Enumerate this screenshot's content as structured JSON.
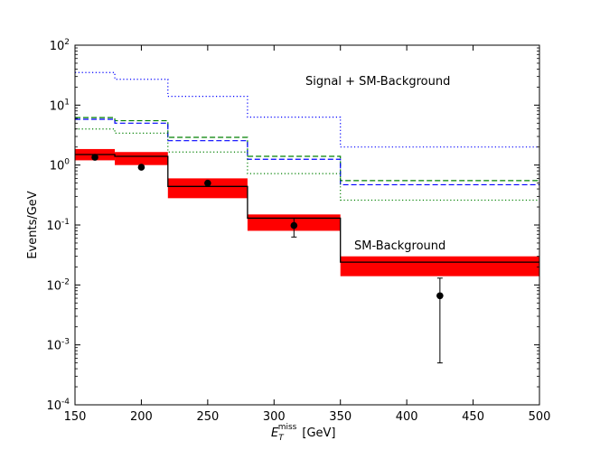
{
  "chart_data": {
    "type": "histogram",
    "title": "",
    "xlabel": "E_T^miss [GeV]",
    "xlabel_main": "E",
    "xlabel_sub": "T",
    "xlabel_sup": "miss",
    "xlabel_unit": "[GeV]",
    "ylabel": "Events/GeV",
    "xlim": [
      150,
      500
    ],
    "ylim_log10": [
      -4,
      2
    ],
    "yscale": "log",
    "x_ticks": [
      "150",
      "200",
      "250",
      "300",
      "350",
      "400",
      "450",
      "500"
    ],
    "x_tick_values": [
      150,
      200,
      250,
      300,
      350,
      400,
      450,
      500
    ],
    "y_tick_base": "10",
    "y_tick_exponents": [
      "-4",
      "-3",
      "-2",
      "-1",
      "0",
      "1",
      "2"
    ],
    "annotations": {
      "signal": "Signal + SM-Background",
      "background": "SM-Background"
    },
    "sm_background": {
      "name": "SM-Background",
      "color": "#000000",
      "edges": [
        150,
        180,
        220,
        280,
        350,
        500
      ],
      "values": [
        1.5,
        1.4,
        0.44,
        0.13,
        0.024
      ]
    },
    "sm_band": {
      "color": "#ff0000",
      "low": [
        1.2,
        1.0,
        0.28,
        0.08,
        0.014
      ],
      "high": [
        1.85,
        1.65,
        0.6,
        0.15,
        0.03
      ]
    },
    "signal_curves": [
      {
        "name": "signal-dotted-blue",
        "color": "#0000ff",
        "style": "dotted",
        "edges": [
          150,
          180,
          220,
          280,
          350,
          500
        ],
        "values": [
          35,
          27,
          14,
          6.3,
          2.0
        ]
      },
      {
        "name": "signal-dashed-green",
        "color": "#008000",
        "style": "dashed",
        "edges": [
          150,
          180,
          220,
          280,
          350,
          500
        ],
        "values": [
          6.2,
          5.5,
          2.9,
          1.4,
          0.55
        ]
      },
      {
        "name": "signal-dashed-blue",
        "color": "#0000ff",
        "style": "dashed",
        "edges": [
          150,
          180,
          220,
          280,
          350,
          500
        ],
        "values": [
          5.8,
          5.0,
          2.55,
          1.25,
          0.47
        ]
      },
      {
        "name": "signal-dotted-green",
        "color": "#008000",
        "style": "dotted",
        "edges": [
          150,
          180,
          220,
          280,
          350,
          500
        ],
        "values": [
          4.0,
          3.4,
          1.65,
          0.72,
          0.26
        ]
      }
    ],
    "data_points": {
      "name": "Data",
      "color": "#000000",
      "x": [
        165,
        200,
        250,
        315,
        425
      ],
      "y": [
        1.35,
        0.92,
        0.5,
        0.098,
        0.0066
      ],
      "y_err_low": [
        0,
        0,
        0,
        0.063,
        0.0005
      ],
      "y_err_high": [
        0,
        0,
        0,
        0.13,
        0.013
      ]
    }
  }
}
